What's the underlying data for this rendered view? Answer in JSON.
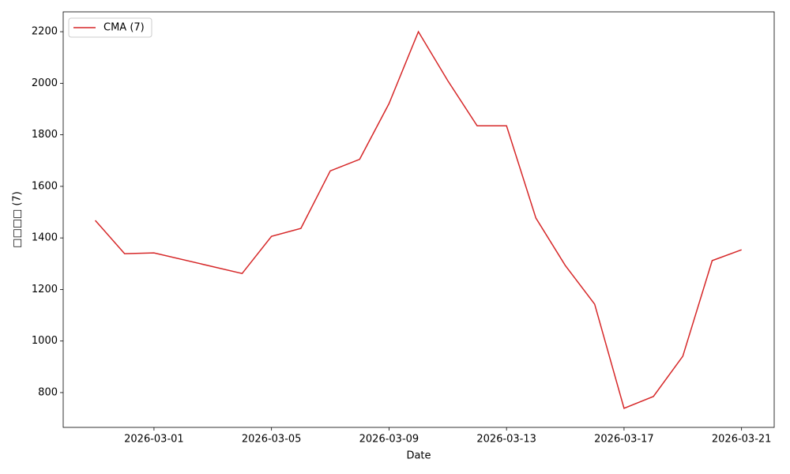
{
  "chart_data": {
    "type": "line",
    "x_label": "Date",
    "y_label": "□□□□ (7)",
    "x": [
      "2026-02-27",
      "2026-02-28",
      "2026-03-01",
      "2026-03-04",
      "2026-03-05",
      "2026-03-06",
      "2026-03-07",
      "2026-03-08",
      "2026-03-09",
      "2026-03-10",
      "2026-03-11",
      "2026-03-12",
      "2026-03-13",
      "2026-03-14",
      "2026-03-15",
      "2026-03-16",
      "2026-03-17",
      "2026-03-18",
      "2026-03-19",
      "2026-03-20",
      "2026-03-21"
    ],
    "series": [
      {
        "name": "CMA (7)",
        "color": "#d62728",
        "values": [
          1468,
          1339,
          1342,
          1262,
          1406,
          1437,
          1660,
          1705,
          1921,
          2200,
          2010,
          1835,
          1835,
          1477,
          1293,
          1143,
          739,
          785,
          941,
          1312,
          1354
        ]
      }
    ],
    "xlim": [
      "2026-02-25T21:50",
      "2026-03-22T02:40"
    ],
    "xticks": [
      "2026-03-01",
      "2026-03-05",
      "2026-03-09",
      "2026-03-13",
      "2026-03-17",
      "2026-03-21"
    ],
    "ylim": [
      665,
      2277
    ],
    "yticks": [
      800,
      1000,
      1200,
      1400,
      1600,
      1800,
      2000,
      2200
    ],
    "legend": "upper left"
  }
}
